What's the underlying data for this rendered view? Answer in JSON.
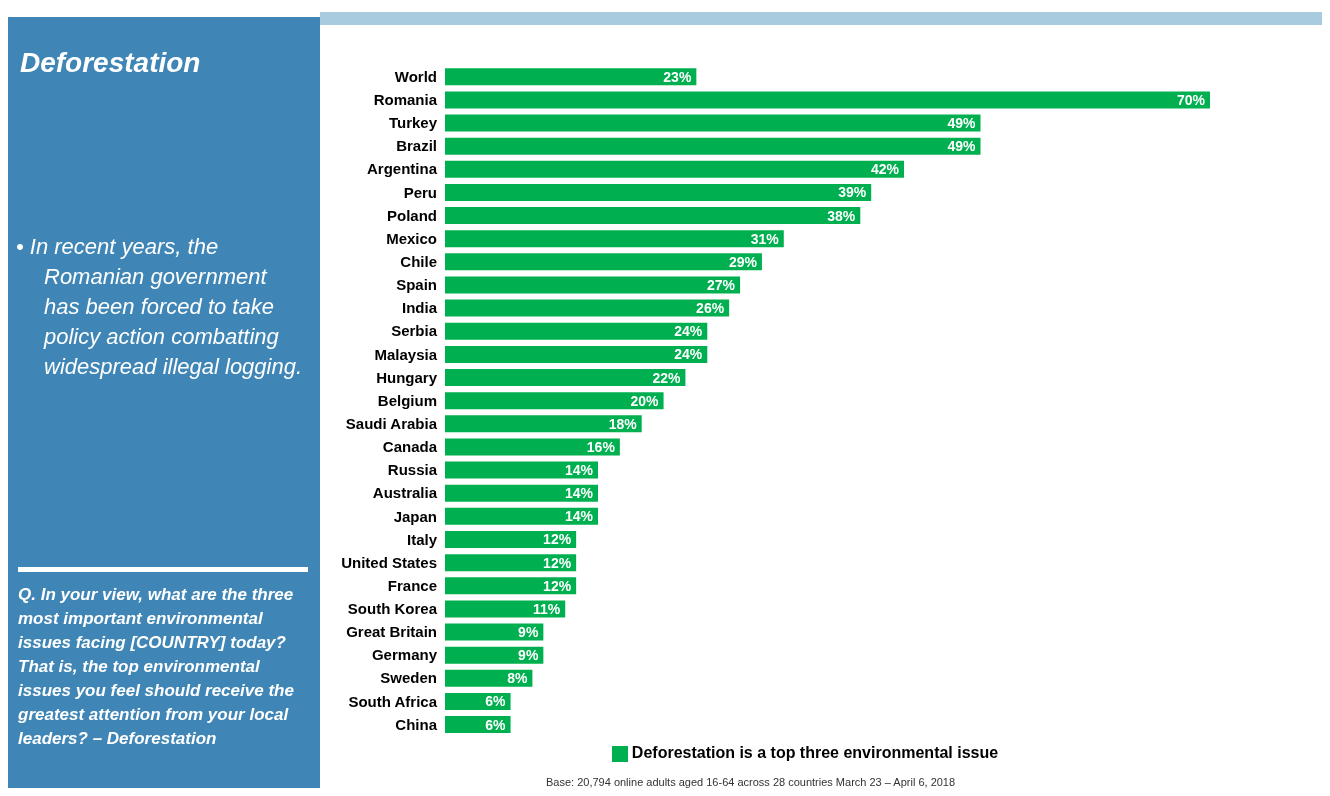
{
  "chart_data": {
    "type": "bar",
    "orientation": "horizontal",
    "title": "Deforestation",
    "annotations": [
      "•  In recent years, the Romanian government has been forced to take policy action combatting widespread illegal logging.",
      "Q. In your view, what are the three most important environmental issues facing [COUNTRY] today? That is, the top environmental issues you feel should receive the greatest attention from your local leaders? – Deforestation",
      "Base: 20,794 online adults aged 16-64 across 28 countries  March 23 – April 6, 2018"
    ],
    "categories": [
      "World",
      "Romania",
      "Turkey",
      "Brazil",
      "Argentina",
      "Peru",
      "Poland",
      "Mexico",
      "Chile",
      "Spain",
      "India",
      "Serbia",
      "Malaysia",
      "Hungary",
      "Belgium",
      "Saudi Arabia",
      "Canada",
      "Russia",
      "Australia",
      "Japan",
      "Italy",
      "United States",
      "France",
      "South Korea",
      "Great Britain",
      "Germany",
      "Sweden",
      "South Africa",
      "China"
    ],
    "series": [
      {
        "name": "Deforestation is a top three environmental issue",
        "color": "#00b050",
        "values": [
          23,
          70,
          49,
          49,
          42,
          39,
          38,
          31,
          29,
          27,
          26,
          24,
          24,
          22,
          20,
          18,
          16,
          14,
          14,
          14,
          12,
          12,
          12,
          11,
          9,
          9,
          8,
          6,
          6
        ],
        "value_labels": [
          "23%",
          "70%",
          "49%",
          "49%",
          "42%",
          "39%",
          "38%",
          "31%",
          "29%",
          "27%",
          "26%",
          "24%",
          "24%",
          "22%",
          "20%",
          "18%",
          "16%",
          "14%",
          "14%",
          "14%",
          "12%",
          "12%",
          "12%",
          "11%",
          "9%",
          "9%",
          "8%",
          "6%",
          "6%"
        ]
      }
    ],
    "legend": "bottom"
  }
}
